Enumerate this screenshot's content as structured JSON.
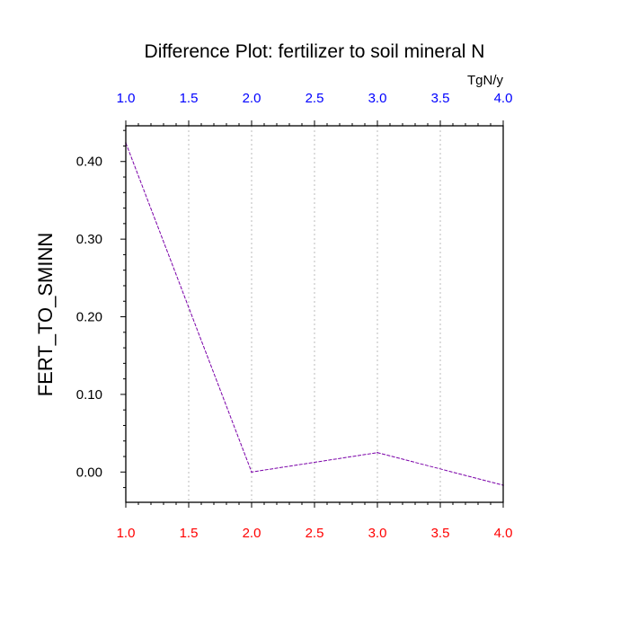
{
  "chart_data": {
    "type": "line",
    "title": "Difference Plot: fertilizer to soil mineral N",
    "ylabel": "FERT_TO_SMINN",
    "units": "TgN/y",
    "x": [
      1.0,
      2.0,
      3.0,
      4.0
    ],
    "series": [
      {
        "values": [
          0.424,
          0.0,
          0.025,
          -0.017
        ]
      }
    ],
    "xlim": [
      1.0,
      4.0
    ],
    "ylim": [
      -0.039,
      0.446
    ],
    "x_ticks": [
      "1.0",
      "1.5",
      "2.0",
      "2.5",
      "3.0",
      "3.5",
      "4.0"
    ],
    "y_ticks": [
      "0.00",
      "0.10",
      "0.20",
      "0.30",
      "0.40"
    ],
    "grid": "vertical dotted",
    "colors": {
      "line": "#7a00a8",
      "top_tick_labels": "#0000ff",
      "bottom_tick_labels": "#ff0000",
      "grid": "#bbbbbb"
    }
  }
}
